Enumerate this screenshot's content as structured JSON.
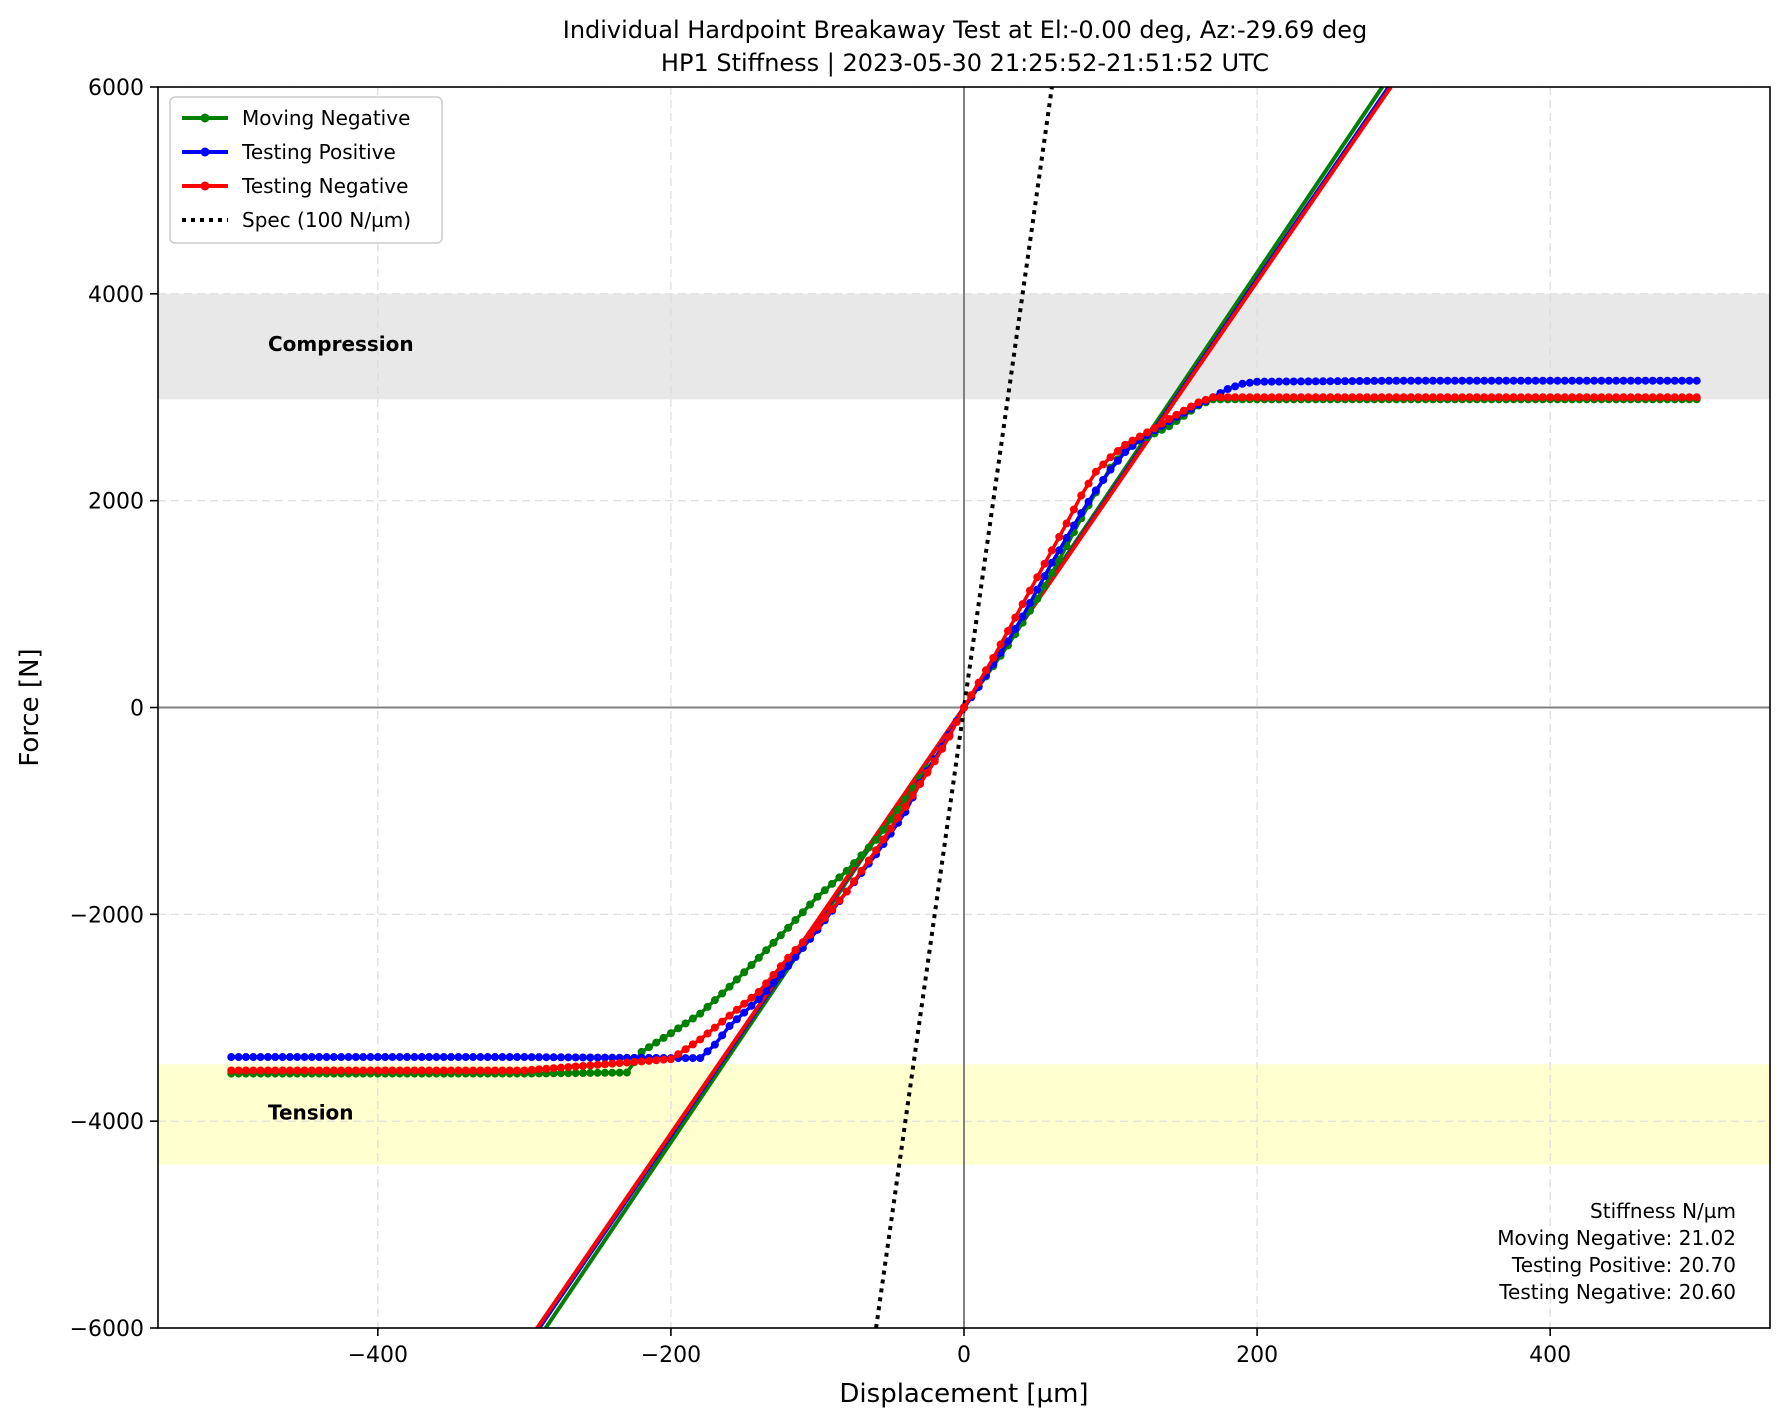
{
  "chart_data": {
    "type": "line",
    "title": "Individual Hardpoint Breakaway Test at El:-0.00 deg, Az:-29.69 deg",
    "subtitle": "HP1 Stiffness | 2023-05-30 21:25:52-21:51:52 UTC",
    "xlabel": "Displacement [µm]",
    "ylabel": "Force [N]",
    "xlim": [
      -550,
      550
    ],
    "ylim": [
      -6000,
      6000
    ],
    "x_ticks": [
      -400,
      -200,
      0,
      200,
      400
    ],
    "y_ticks": [
      -6000,
      -4000,
      -2000,
      0,
      2000,
      4000,
      6000
    ],
    "x_tick_labels": [
      "−400",
      "−200",
      "0",
      "200",
      "400"
    ],
    "y_tick_labels": [
      "−6000",
      "−4000",
      "−2000",
      "0",
      "2000",
      "4000",
      "6000"
    ],
    "grid": true,
    "legend_position": "top-left",
    "bands": [
      {
        "label": "Compression",
        "y_range": [
          2980,
          4000
        ],
        "color": "#e8e8e8"
      },
      {
        "label": "Tension",
        "y_range": [
          -4420,
          -3450
        ],
        "color": "#ffffd0"
      }
    ],
    "series": [
      {
        "name": "Moving Negative",
        "color": "#008000",
        "marker": "dot",
        "points": [
          [
            -500,
            -3540
          ],
          [
            -400,
            -3540
          ],
          [
            -300,
            -3540
          ],
          [
            -230,
            -3530
          ],
          [
            -220,
            -3330
          ],
          [
            -200,
            -3150
          ],
          [
            -180,
            -2960
          ],
          [
            -160,
            -2700
          ],
          [
            -140,
            -2420
          ],
          [
            -120,
            -2130
          ],
          [
            -100,
            -1830
          ],
          [
            -80,
            -1580
          ],
          [
            -60,
            -1280
          ],
          [
            -40,
            -890
          ],
          [
            -30,
            -680
          ],
          [
            -20,
            -500
          ],
          [
            -10,
            -270
          ],
          [
            0,
            0
          ],
          [
            10,
            200
          ],
          [
            20,
            400
          ],
          [
            30,
            600
          ],
          [
            40,
            820
          ],
          [
            50,
            1050
          ],
          [
            60,
            1300
          ],
          [
            70,
            1560
          ],
          [
            80,
            1830
          ],
          [
            90,
            2080
          ],
          [
            100,
            2320
          ],
          [
            110,
            2480
          ],
          [
            120,
            2580
          ],
          [
            130,
            2650
          ],
          [
            140,
            2720
          ],
          [
            150,
            2820
          ],
          [
            160,
            2920
          ],
          [
            170,
            2980
          ],
          [
            200,
            2980
          ],
          [
            300,
            2980
          ],
          [
            400,
            2980
          ],
          [
            500,
            2980
          ]
        ]
      },
      {
        "name": "Testing Positive",
        "color": "#0000ff",
        "marker": "dot",
        "points": [
          [
            -500,
            -3380
          ],
          [
            -400,
            -3380
          ],
          [
            -300,
            -3380
          ],
          [
            -200,
            -3390
          ],
          [
            -180,
            -3390
          ],
          [
            -170,
            -3260
          ],
          [
            -160,
            -3080
          ],
          [
            -140,
            -2820
          ],
          [
            -120,
            -2500
          ],
          [
            -100,
            -2150
          ],
          [
            -80,
            -1780
          ],
          [
            -60,
            -1420
          ],
          [
            -50,
            -1220
          ],
          [
            -40,
            -1010
          ],
          [
            -30,
            -730
          ],
          [
            -20,
            -500
          ],
          [
            -10,
            -260
          ],
          [
            0,
            0
          ],
          [
            10,
            200
          ],
          [
            20,
            420
          ],
          [
            30,
            640
          ],
          [
            40,
            880
          ],
          [
            50,
            1140
          ],
          [
            60,
            1400
          ],
          [
            70,
            1640
          ],
          [
            80,
            1880
          ],
          [
            90,
            2100
          ],
          [
            100,
            2300
          ],
          [
            110,
            2470
          ],
          [
            120,
            2590
          ],
          [
            130,
            2680
          ],
          [
            140,
            2770
          ],
          [
            150,
            2850
          ],
          [
            160,
            2930
          ],
          [
            170,
            3000
          ],
          [
            180,
            3080
          ],
          [
            190,
            3130
          ],
          [
            200,
            3150
          ],
          [
            300,
            3160
          ],
          [
            400,
            3160
          ],
          [
            500,
            3160
          ]
        ]
      },
      {
        "name": "Testing Negative",
        "color": "#ff0000",
        "marker": "dot",
        "points": [
          [
            -500,
            -3510
          ],
          [
            -400,
            -3510
          ],
          [
            -300,
            -3510
          ],
          [
            -200,
            -3400
          ],
          [
            -180,
            -3210
          ],
          [
            -160,
            -2980
          ],
          [
            -140,
            -2750
          ],
          [
            -120,
            -2420
          ],
          [
            -100,
            -2120
          ],
          [
            -80,
            -1780
          ],
          [
            -60,
            -1380
          ],
          [
            -40,
            -960
          ],
          [
            -30,
            -740
          ],
          [
            -20,
            -520
          ],
          [
            -10,
            -280
          ],
          [
            0,
            0
          ],
          [
            10,
            240
          ],
          [
            20,
            480
          ],
          [
            30,
            740
          ],
          [
            40,
            1000
          ],
          [
            50,
            1260
          ],
          [
            60,
            1520
          ],
          [
            70,
            1780
          ],
          [
            80,
            2050
          ],
          [
            90,
            2280
          ],
          [
            100,
            2420
          ],
          [
            110,
            2540
          ],
          [
            120,
            2620
          ],
          [
            130,
            2700
          ],
          [
            140,
            2790
          ],
          [
            150,
            2870
          ],
          [
            160,
            2950
          ],
          [
            170,
            3000
          ],
          [
            200,
            3000
          ],
          [
            300,
            3000
          ],
          [
            400,
            3000
          ],
          [
            500,
            3000
          ]
        ]
      }
    ],
    "fits": [
      {
        "name": "Moving Negative",
        "color": "#008000",
        "slope": 21.02
      },
      {
        "name": "Testing Positive",
        "color": "#0000ff",
        "slope": 20.7
      },
      {
        "name": "Testing Negative",
        "color": "#ff0000",
        "slope": 20.6
      }
    ],
    "spec_line": {
      "name": "Spec (100 N/µm)",
      "slope": 100,
      "color": "#000000"
    },
    "legend": [
      {
        "label": "Moving Negative",
        "color": "#008000",
        "style": "solid-dot"
      },
      {
        "label": "Testing Positive",
        "color": "#0000ff",
        "style": "solid-dot"
      },
      {
        "label": "Testing Negative",
        "color": "#ff0000",
        "style": "solid-dot"
      },
      {
        "label": "Spec (100 N/µm)",
        "color": "#000000",
        "style": "dotted"
      }
    ],
    "annotation": {
      "title": "Stiffness N/µm",
      "lines": [
        "Moving Negative: 21.02",
        "Testing Positive: 20.70",
        "Testing Negative: 20.60"
      ]
    }
  }
}
